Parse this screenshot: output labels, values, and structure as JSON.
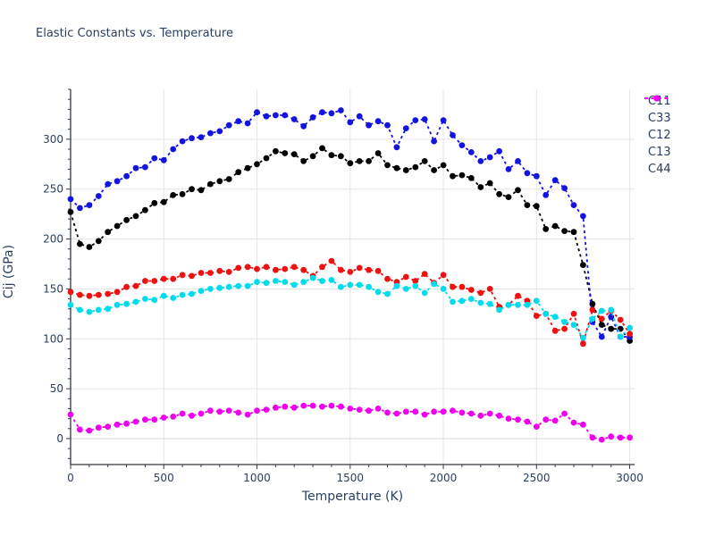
{
  "title": "Elastic Constants vs. Temperature",
  "chart_data": {
    "type": "line",
    "title": "Elastic Constants vs. Temperature",
    "xlabel": "Temperature (K)",
    "ylabel": "Cij (GPa)",
    "grid": true,
    "legend_position": "right",
    "line_style": "dashed-with-dot-markers",
    "xlim": [
      0,
      3026
    ],
    "ylim": [
      -26,
      350
    ],
    "x_ticks": [
      0,
      500,
      1000,
      1500,
      2000,
      2500,
      3000
    ],
    "y_ticks": [
      0,
      50,
      100,
      150,
      200,
      250,
      300
    ],
    "x_minor_step": 100,
    "y_minor_step": 10,
    "x": [
      0,
      50,
      100,
      150,
      200,
      250,
      300,
      350,
      400,
      450,
      500,
      550,
      600,
      650,
      700,
      750,
      800,
      850,
      900,
      950,
      1000,
      1050,
      1100,
      1150,
      1200,
      1250,
      1300,
      1350,
      1400,
      1450,
      1500,
      1550,
      1600,
      1650,
      1700,
      1750,
      1800,
      1850,
      1900,
      1950,
      2000,
      2050,
      2100,
      2150,
      2200,
      2250,
      2300,
      2350,
      2400,
      2450,
      2500,
      2550,
      2600,
      2650,
      2700,
      2750,
      2800,
      2850,
      2900,
      2950,
      3000
    ],
    "series": [
      {
        "name": "C11",
        "color": "#000000",
        "values": [
          227,
          195,
          192,
          198,
          207,
          213,
          219,
          223,
          229,
          236,
          237,
          244,
          245,
          250,
          249,
          255,
          258,
          260,
          267,
          271,
          275,
          281,
          288,
          286,
          285,
          278,
          283,
          291,
          284,
          283,
          276,
          278,
          278,
          286,
          274,
          271,
          269,
          272,
          278,
          269,
          274,
          263,
          264,
          261,
          252,
          256,
          245,
          242,
          249,
          234,
          233,
          210,
          213,
          208,
          207,
          174,
          135,
          114,
          110,
          110,
          98
        ]
      },
      {
        "name": "C33",
        "color": "#1414e0",
        "values": [
          240,
          231,
          234,
          243,
          255,
          258,
          263,
          271,
          272,
          281,
          279,
          290,
          298,
          301,
          302,
          306,
          308,
          314,
          318,
          316,
          327,
          323,
          324,
          324,
          320,
          313,
          322,
          327,
          326,
          329,
          317,
          323,
          314,
          318,
          314,
          292,
          311,
          319,
          320,
          298,
          319,
          304,
          294,
          287,
          278,
          282,
          288,
          270,
          278,
          266,
          263,
          244,
          259,
          251,
          234,
          223,
          117,
          102,
          122,
          102,
          102
        ]
      },
      {
        "name": "C12",
        "color": "#ee1111",
        "values": [
          147,
          144,
          143,
          144,
          145,
          147,
          152,
          153,
          158,
          158,
          160,
          160,
          164,
          163,
          166,
          166,
          168,
          167,
          171,
          172,
          170,
          172,
          169,
          170,
          172,
          169,
          163,
          172,
          178,
          169,
          167,
          171,
          169,
          168,
          160,
          157,
          162,
          158,
          165,
          156,
          164,
          152,
          152,
          149,
          146,
          150,
          132,
          134,
          143,
          138,
          123,
          125,
          108,
          110,
          125,
          95,
          129,
          120,
          128,
          119,
          105
        ]
      },
      {
        "name": "C13",
        "color": "#00dcec",
        "values": [
          134,
          129,
          127,
          129,
          130,
          134,
          135,
          137,
          140,
          139,
          143,
          141,
          144,
          145,
          148,
          150,
          151,
          152,
          153,
          153,
          157,
          156,
          158,
          157,
          154,
          157,
          161,
          158,
          159,
          152,
          154,
          154,
          152,
          147,
          145,
          153,
          150,
          153,
          146,
          155,
          150,
          137,
          138,
          140,
          136,
          135,
          129,
          134,
          134,
          134,
          138,
          125,
          122,
          117,
          114,
          101,
          120,
          128,
          129,
          102,
          111
        ]
      },
      {
        "name": "C44",
        "color": "#ee00ee",
        "values": [
          24,
          9,
          8,
          11,
          12,
          14,
          15,
          17,
          19,
          19,
          21,
          22,
          25,
          23,
          25,
          28,
          27,
          28,
          26,
          24,
          28,
          29,
          31,
          32,
          31,
          33,
          33,
          32,
          33,
          32,
          30,
          29,
          28,
          30,
          26,
          25,
          27,
          27,
          24,
          27,
          27,
          28,
          26,
          25,
          23,
          25,
          23,
          20,
          19,
          17,
          12,
          19,
          18,
          25,
          16,
          14,
          1,
          -1,
          2,
          1,
          1
        ]
      }
    ],
    "plot_colors": {
      "grid": "#e5e5e5",
      "zero_line": "#d8d8d8",
      "axis": "#333a45",
      "text": "#2a3f5f",
      "background": "#ffffff"
    }
  }
}
